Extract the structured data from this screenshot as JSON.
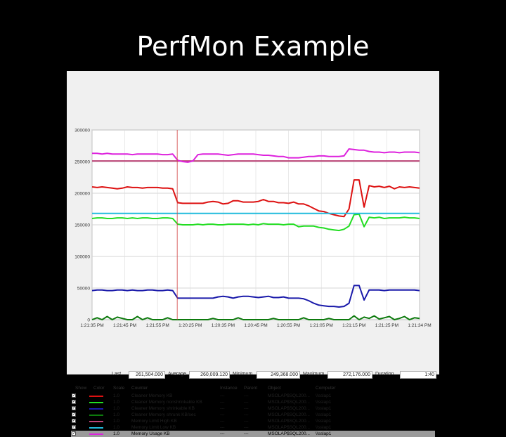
{
  "slide": {
    "title": "PerfMon Example"
  },
  "chart_data": {
    "type": "line",
    "y_ticks": [
      "300000",
      "250000",
      "200000",
      "150000",
      "100000",
      "50000",
      "0"
    ],
    "ylim": [
      0,
      300000
    ],
    "x_ticks": [
      "1:21:35 PM",
      "1:21:45 PM",
      "1:21:55 PM",
      "1:20:25 PM",
      "1:20:35 PM",
      "1:20:45 PM",
      "1:20:55 PM",
      "1:21:05 PM",
      "1:21:15 PM",
      "1:21:25 PM",
      "1:21:34 PM"
    ],
    "marker_position": 0.26,
    "series": [
      {
        "name": "Cleaner Memory KB",
        "color": "#dd1111",
        "values": [
          210000,
          209000,
          210000,
          209000,
          208000,
          207000,
          208000,
          210000,
          209000,
          209000,
          208000,
          209000,
          209000,
          209000,
          208000,
          208000,
          207000,
          185000,
          184000,
          184000,
          184000,
          184000,
          184000,
          186000,
          187000,
          186000,
          183000,
          184000,
          188000,
          188000,
          186000,
          186000,
          186000,
          187000,
          190000,
          187000,
          187000,
          185000,
          185000,
          184000,
          186000,
          183000,
          183000,
          180000,
          176000,
          172000,
          171000,
          168000,
          166000,
          164000,
          163000,
          175000,
          221000,
          221000,
          178000,
          212000,
          210000,
          211000,
          209000,
          211000,
          207000,
          210000,
          209000,
          210000,
          209000,
          208000
        ]
      },
      {
        "name": "Cleaner Memory nonshrinkable KB",
        "color": "#22dd22",
        "values": [
          160000,
          161000,
          161000,
          160000,
          160000,
          161000,
          161000,
          160000,
          161000,
          160000,
          161000,
          161000,
          160000,
          160000,
          161000,
          161000,
          160000,
          151000,
          150000,
          150000,
          150000,
          151000,
          150000,
          151000,
          151000,
          150000,
          150000,
          151000,
          151000,
          151000,
          151000,
          150000,
          151000,
          150000,
          152000,
          151000,
          151000,
          151000,
          150000,
          151000,
          151000,
          147000,
          148000,
          148000,
          148000,
          146000,
          145000,
          143000,
          142000,
          141000,
          143000,
          148000,
          166000,
          167000,
          147000,
          162000,
          161000,
          162000,
          160000,
          161000,
          161000,
          161000,
          162000,
          161000,
          161000,
          160000
        ]
      },
      {
        "name": "Cleaner Memory shrinkable KB",
        "color": "#1a1aaa",
        "values": [
          46000,
          47000,
          47000,
          46000,
          46000,
          47000,
          47000,
          46000,
          47000,
          46000,
          46000,
          47000,
          47000,
          46000,
          46000,
          47000,
          46000,
          34000,
          34000,
          34000,
          34000,
          34000,
          34000,
          34000,
          34000,
          36000,
          37000,
          36000,
          34000,
          36000,
          37000,
          37000,
          36000,
          35000,
          36000,
          37000,
          35000,
          35000,
          36000,
          34000,
          34000,
          34000,
          33000,
          30000,
          26000,
          23000,
          22000,
          21000,
          21000,
          20000,
          21000,
          26000,
          54000,
          54000,
          31000,
          47000,
          47000,
          47000,
          46000,
          47000,
          47000,
          47000,
          47000,
          47000,
          47000,
          46000
        ]
      },
      {
        "name": "Cleaner Memory shrunk KB/sec",
        "color": "#0d7a0d",
        "values": [
          0,
          3000,
          0,
          5000,
          0,
          4000,
          2000,
          0,
          0,
          5000,
          0,
          3000,
          0,
          0,
          0,
          3000,
          0,
          0,
          0,
          0,
          0,
          0,
          0,
          0,
          2000,
          0,
          0,
          0,
          0,
          3000,
          0,
          0,
          0,
          0,
          0,
          0,
          2000,
          0,
          0,
          0,
          0,
          0,
          3000,
          0,
          0,
          0,
          0,
          2000,
          0,
          0,
          0,
          0,
          6000,
          0,
          4000,
          2000,
          6000,
          1000,
          3000,
          5000,
          0,
          2000,
          5000,
          0,
          3000,
          2000
        ]
      },
      {
        "name": "Memory Limit High KB",
        "color": "#bb4477",
        "values": [
          251000,
          251000,
          251000,
          251000,
          251000,
          251000,
          251000,
          251000,
          251000,
          251000,
          251000,
          251000,
          251000,
          251000,
          251000,
          251000,
          251000,
          251000,
          251000,
          251000,
          251000,
          251000,
          251000,
          251000,
          251000,
          251000,
          251000,
          251000,
          251000,
          251000,
          251000,
          251000,
          251000,
          251000,
          251000,
          251000,
          251000,
          251000,
          251000,
          251000,
          251000,
          251000,
          251000,
          251000,
          251000,
          251000,
          251000,
          251000,
          251000,
          251000,
          251000,
          251000,
          251000,
          251000,
          251000,
          251000,
          251000,
          251000,
          251000,
          251000,
          251000,
          251000,
          251000,
          251000,
          251000,
          251000
        ]
      },
      {
        "name": "Memory Limit Low KB",
        "color": "#22bbdd",
        "values": [
          168000,
          168000,
          168000,
          168000,
          168000,
          168000,
          168000,
          168000,
          168000,
          168000,
          168000,
          168000,
          168000,
          168000,
          168000,
          168000,
          168000,
          168000,
          168000,
          168000,
          168000,
          168000,
          168000,
          168000,
          168000,
          168000,
          168000,
          168000,
          168000,
          168000,
          168000,
          168000,
          168000,
          168000,
          168000,
          168000,
          168000,
          168000,
          168000,
          168000,
          168000,
          168000,
          168000,
          168000,
          168000,
          168000,
          168000,
          168000,
          168000,
          168000,
          168000,
          168000,
          168000,
          168000,
          168000,
          168000,
          168000,
          168000,
          168000,
          168000,
          168000,
          168000,
          168000,
          168000,
          168000,
          168000
        ]
      },
      {
        "name": "Memory Usage KB",
        "color": "#dd22dd",
        "values": [
          263000,
          263000,
          262000,
          263000,
          262000,
          262000,
          262000,
          262000,
          261000,
          262000,
          262000,
          262000,
          262000,
          262000,
          261000,
          261000,
          262000,
          252000,
          250000,
          249000,
          251000,
          261000,
          262000,
          262000,
          262000,
          262000,
          261000,
          260000,
          261000,
          262000,
          262000,
          262000,
          262000,
          261000,
          260000,
          260000,
          259000,
          258000,
          258000,
          256000,
          256000,
          256000,
          257000,
          258000,
          258000,
          259000,
          259000,
          258000,
          258000,
          258000,
          259000,
          270000,
          269000,
          268000,
          268000,
          266000,
          265000,
          265000,
          264000,
          265000,
          265000,
          264000,
          265000,
          265000,
          265000,
          264000
        ]
      }
    ]
  },
  "stats": {
    "last_label": "Last",
    "last_value": "261,504.000",
    "avg_label": "Average",
    "avg_value": "260,009.120",
    "min_label": "Minimum",
    "min_value": "249,368.000",
    "max_label": "Maximum",
    "max_value": "272,176.000",
    "dur_label": "Duration",
    "dur_value": "1:40"
  },
  "table": {
    "headers": {
      "show": "Show",
      "color": "Color",
      "scale": "Scale",
      "counter": "Counter",
      "instance": "Instance",
      "parent": "Parent",
      "object": "Object",
      "computer": "Computer"
    },
    "rows": [
      {
        "check": "✓",
        "color": "#dd1111",
        "scale": "1.0",
        "counter": "Cleaner Memory KB",
        "instance": "---",
        "parent": "---",
        "object": "MSOLAP$SQL200...",
        "computer": "\\\\sslap1"
      },
      {
        "check": "✓",
        "color": "#22dd22",
        "scale": "1.0",
        "counter": "Cleaner Memory nonshrinkable KB",
        "instance": "---",
        "parent": "---",
        "object": "MSOLAP$SQL200...",
        "computer": "\\\\sslap1"
      },
      {
        "check": "✓",
        "color": "#1a1aaa",
        "scale": "1.0",
        "counter": "Cleaner Memory shrinkable KB",
        "instance": "---",
        "parent": "---",
        "object": "MSOLAP$SQL200...",
        "computer": "\\\\sslap1"
      },
      {
        "check": "✓",
        "color": "#0d7a0d",
        "scale": "1.0",
        "counter": "Cleaner Memory shrunk KB/sec",
        "instance": "---",
        "parent": "---",
        "object": "MSOLAP$SQL200...",
        "computer": "\\\\sslap1"
      },
      {
        "check": "✓",
        "color": "#bb4477",
        "scale": "1.0",
        "counter": "Memory Limit High KB",
        "instance": "---",
        "parent": "---",
        "object": "MSOLAP$SQL200...",
        "computer": "\\\\sslap1"
      },
      {
        "check": "✓",
        "color": "#22bbdd",
        "scale": "1.0",
        "counter": "Memory Limit Low KB",
        "instance": "---",
        "parent": "---",
        "object": "MSOLAP$SQL200...",
        "computer": "\\\\sslap1"
      },
      {
        "check": "✓",
        "color": "#dd22dd",
        "scale": "1.0",
        "counter": "Memory Usage KB",
        "instance": "---",
        "parent": "---",
        "object": "MSOLAP$SQL200...",
        "computer": "\\\\sslap1",
        "selected": true
      }
    ]
  }
}
